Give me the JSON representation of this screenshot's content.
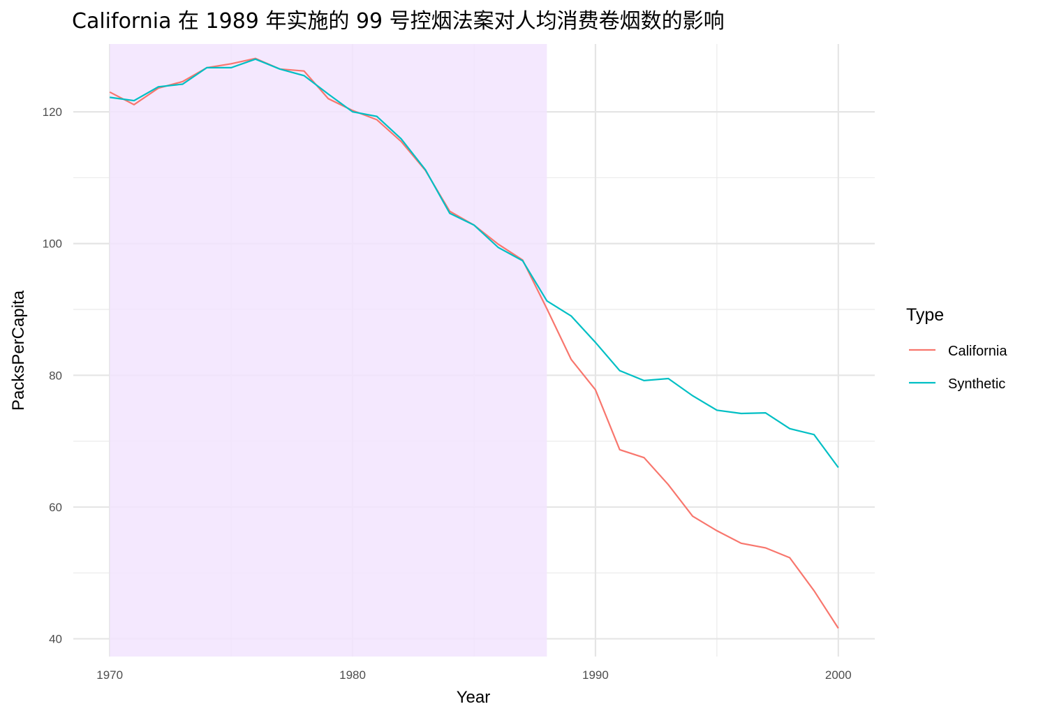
{
  "chart_data": {
    "type": "line",
    "title": "California 在 1989 年实施的 99 号控烟法案对人均消费卷烟数的影响",
    "xlabel": "Year",
    "ylabel": "PacksPerCapita",
    "xlim": [
      1968.5,
      2001.5
    ],
    "ylim": [
      37.3,
      130.3
    ],
    "xticks": [
      1970,
      1980,
      1990,
      2000
    ],
    "yticks": [
      40,
      60,
      80,
      100,
      120
    ],
    "grid": true,
    "shaded_region": {
      "x": [
        1970,
        1988
      ],
      "color": "#f2e4fe"
    },
    "legend": {
      "title": "Type",
      "placement": "right"
    },
    "x": [
      1970,
      1971,
      1972,
      1973,
      1974,
      1975,
      1976,
      1977,
      1978,
      1979,
      1980,
      1981,
      1982,
      1983,
      1984,
      1985,
      1986,
      1987,
      1988,
      1989,
      1990,
      1991,
      1992,
      1993,
      1994,
      1995,
      1996,
      1997,
      1998,
      1999,
      2000
    ],
    "series": [
      {
        "name": "California",
        "color": "#F8766D",
        "values": [
          123.0,
          121.1,
          123.6,
          124.6,
          126.7,
          127.3,
          128.1,
          126.5,
          126.2,
          122.0,
          120.2,
          118.8,
          115.5,
          111.1,
          104.9,
          102.8,
          99.9,
          97.5,
          90.1,
          82.4,
          77.8,
          68.7,
          67.5,
          63.4,
          58.6,
          56.4,
          54.5,
          53.8,
          52.3,
          47.3,
          41.6
        ]
      },
      {
        "name": "Synthetic",
        "color": "#00BFC4",
        "values": [
          122.2,
          121.7,
          123.8,
          124.2,
          126.7,
          126.7,
          128.0,
          126.5,
          125.5,
          122.7,
          120.0,
          119.3,
          115.9,
          111.2,
          104.6,
          102.8,
          99.4,
          97.4,
          91.3,
          89.0,
          85.0,
          80.7,
          79.2,
          79.5,
          76.9,
          74.7,
          74.2,
          74.3,
          71.9,
          71.0,
          66.0
        ]
      }
    ]
  }
}
